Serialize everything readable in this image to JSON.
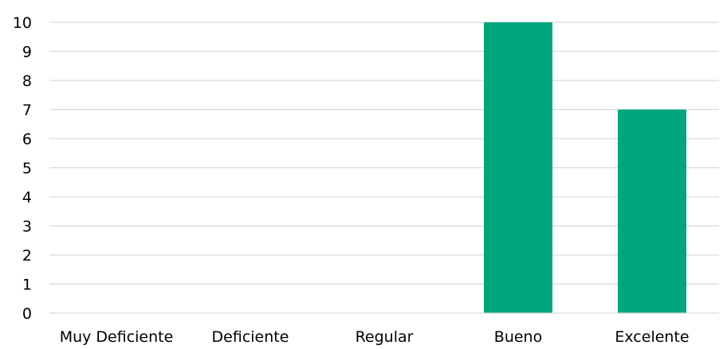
{
  "chart_data": {
    "type": "bar",
    "categories": [
      "Muy Deficiente",
      "Deficiente",
      "Regular",
      "Bueno",
      "Excelente"
    ],
    "values": [
      0,
      0,
      0,
      10,
      7
    ],
    "yticks": [
      "0",
      "1",
      "2",
      "3",
      "4",
      "5",
      "6",
      "7",
      "8",
      "9",
      "10"
    ],
    "ylim": [
      0,
      10
    ],
    "grid": true,
    "legend": "none",
    "bar_color": "#00a67e"
  }
}
